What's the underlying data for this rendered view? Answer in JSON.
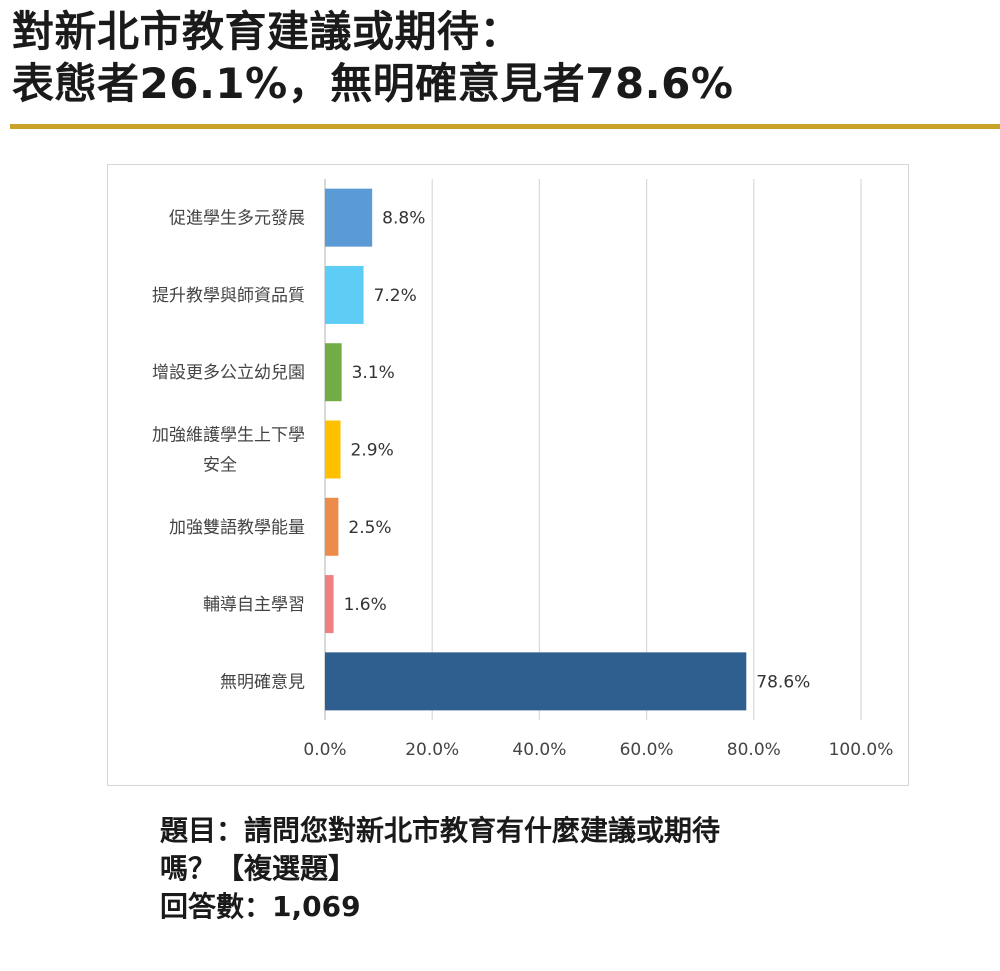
{
  "headline": {
    "line1": "對新北市教育建議或期待：",
    "line2": "表態者26.1%，無明確意見者78.6%"
  },
  "colors": {
    "rule": "#c9a227",
    "gridline": "#d9d9d9",
    "axis": "#bfbfbf"
  },
  "chart_data": {
    "type": "bar",
    "orientation": "horizontal",
    "title": "",
    "xlabel": "",
    "ylabel": "",
    "xlim": [
      0,
      100
    ],
    "x_ticks": [
      "0.0%",
      "20.0%",
      "40.0%",
      "60.0%",
      "80.0%",
      "100.0%"
    ],
    "grid": true,
    "categories": [
      [
        "促進學生多元發展"
      ],
      [
        "提升教學與師資品質"
      ],
      [
        "增設更多公立幼兒園"
      ],
      [
        "加強維護學生上下學",
        "安全"
      ],
      [
        "加強雙語教學能量"
      ],
      [
        "輔導自主學習"
      ],
      [
        "無明確意見"
      ]
    ],
    "values": [
      8.8,
      7.2,
      3.1,
      2.9,
      2.5,
      1.6,
      78.6
    ],
    "value_labels": [
      "8.8%",
      "7.2%",
      "3.1%",
      "2.9%",
      "2.5%",
      "1.6%",
      "78.6%"
    ],
    "bar_colors": [
      "#5b9bd5",
      "#5ecdf5",
      "#70ad47",
      "#ffc000",
      "#ed8b4a",
      "#f08080",
      "#2e5f8f"
    ]
  },
  "footer": {
    "line1": "題目：請問您對新北市教育有什麼建議或期待",
    "line2": "嗎？【複選題】",
    "line3": "回答數：1,069"
  }
}
